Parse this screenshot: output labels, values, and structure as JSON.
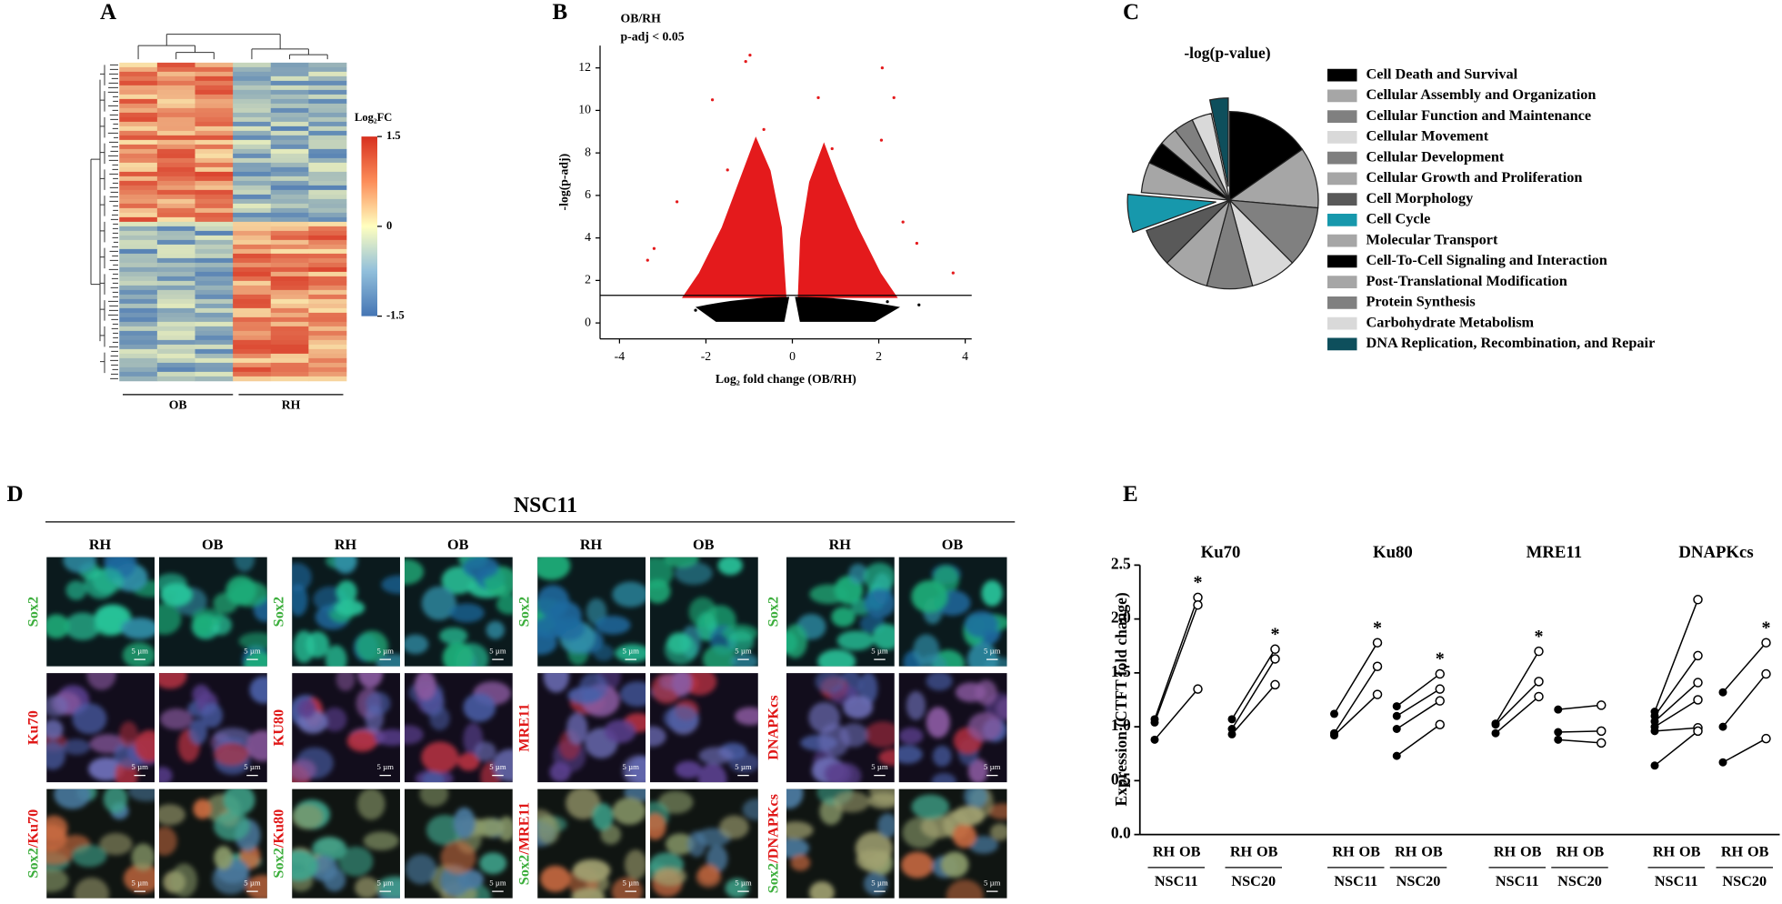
{
  "panel_labels": [
    "A",
    "B",
    "C",
    "D",
    "E"
  ],
  "chart_data": [
    {
      "type": "heatmap",
      "legend_title": "Log₂FC",
      "colorbar_lim": [
        -1.5,
        1.5
      ],
      "colorbar_ticks": [
        1.5,
        0,
        -1.5
      ],
      "groups": [
        "OB",
        "RH"
      ]
    },
    {
      "type": "scatter",
      "title": "OB/RH",
      "subtitle": "p-adj < 0.05",
      "x_label": "Log₂ fold change (OB/RH)",
      "y_label": "-log(p-adj)",
      "xlim": [
        -4.45,
        4.15
      ],
      "xticks": [
        -4,
        -2,
        0,
        2,
        4
      ],
      "ylim": [
        -0.75,
        13.05
      ],
      "yticks": [
        0,
        2,
        4,
        6,
        8,
        10,
        12
      ],
      "threshold": 1.3,
      "series": [
        {
          "color": "#e41a1c",
          "x": [
            -0.98,
            -1.08,
            2.08,
            -1.85,
            0.6,
            2.35,
            -0.66,
            -3.2,
            -3.35,
            3.72,
            2.88,
            2.56,
            2.06,
            0.92,
            -2.67,
            -1.5
          ],
          "values": [
            12.6,
            12.3,
            12.0,
            10.5,
            10.6,
            10.6,
            9.1,
            3.5,
            2.95,
            2.35,
            3.75,
            4.75,
            8.6,
            8.2,
            5.7,
            7.2
          ]
        },
        {
          "color": "#000000",
          "x": [
            -2.24,
            2.93,
            -1.77,
            2.2,
            -0.98
          ],
          "values": [
            0.6,
            0.85,
            0.85,
            1.0,
            0.75
          ]
        }
      ]
    },
    {
      "type": "pie",
      "title": "-log(p-value)",
      "categories": [
        "Cell Death and Survival",
        "Cellular Assembly and Organization",
        "Cellular Function and Maintenance",
        "Cellular Movement",
        "Cellular Development",
        "Cellular Growth and Proliferation",
        "Cell Morphology",
        "Cell Cycle",
        "Molecular Transport",
        "Cell-To-Cell Signaling and Interaction",
        "Post-Translational Modification",
        "Protein Synthesis",
        "Carbohydrate Metabolism",
        "DNA Replication, Recombination, and Repair"
      ],
      "values": [
        11,
        8,
        8,
        6,
        6,
        6,
        5,
        5,
        4,
        3,
        2.4,
        2.6,
        2.6,
        2.4
      ],
      "colors": [
        "#000000",
        "#a6a6a6",
        "#808080",
        "#d9d9d9",
        "#7f7f7f",
        "#a6a6a6",
        "#595959",
        "#1798ac",
        "#a6a6a6",
        "#000000",
        "#a6a6a6",
        "#808080",
        "#d9d9d9",
        "#0e4f5c"
      ],
      "exploded": [
        7,
        13
      ]
    },
    {
      "type": "line",
      "y_label": "Expression (CTFT fold change)",
      "ylim": [
        0,
        2.5
      ],
      "yticks": [
        {
          "value": 0,
          "label": "0.0"
        },
        0.5,
        {
          "value": 1,
          "label": "1.0"
        },
        1.5,
        {
          "value": 2,
          "label": "2.0"
        },
        2.5
      ],
      "conditions": [
        "RH",
        "OB"
      ],
      "groups": [
        {
          "name": "Ku70",
          "subgroups": [
            {
              "name": "NSC11",
              "rh": [
                1.07,
                1.04,
                0.88
              ],
              "ob": [
                2.2,
                2.13,
                1.35
              ],
              "significance": "*"
            },
            {
              "name": "NSC20",
              "rh": [
                1.07,
                0.98,
                0.93
              ],
              "ob": [
                1.72,
                1.63,
                1.39
              ],
              "significance": "*"
            }
          ]
        },
        {
          "name": "Ku80",
          "subgroups": [
            {
              "name": "NSC11",
              "rh": [
                1.12,
                0.94,
                0.92
              ],
              "ob": [
                1.78,
                1.56,
                1.3
              ],
              "significance": "*"
            },
            {
              "name": "NSC20",
              "rh": [
                1.19,
                1.1,
                0.98,
                0.73
              ],
              "ob": [
                1.49,
                1.35,
                1.24,
                1.02
              ],
              "significance": "*"
            }
          ]
        },
        {
          "name": "MRE11",
          "subgroups": [
            {
              "name": "NSC11",
              "rh": [
                1.03,
                1.02,
                0.94
              ],
              "ob": [
                1.7,
                1.42,
                1.28
              ],
              "significance": "*"
            },
            {
              "name": "NSC20",
              "rh": [
                1.16,
                0.95,
                0.88
              ],
              "ob": [
                1.2,
                0.96,
                0.85
              ]
            }
          ]
        },
        {
          "name": "DNAPKcs",
          "subgroups": [
            {
              "name": "NSC11",
              "rh": [
                1.14,
                1.1,
                1.05,
                1.0,
                0.96,
                0.64
              ],
              "ob": [
                2.18,
                1.66,
                1.41,
                1.25,
                0.99,
                0.96
              ]
            },
            {
              "name": "NSC20",
              "rh": [
                1.32,
                1.0,
                0.67
              ],
              "ob": [
                1.78,
                1.49,
                0.89
              ],
              "significance": "*"
            }
          ]
        }
      ]
    }
  ],
  "figure_d": {
    "title": "NSC11",
    "columns": [
      "RH",
      "OB"
    ],
    "counterstain": "Sox2",
    "separator": "/",
    "scale_bar": "5 µm",
    "markers": [
      {
        "row_label": "Ku70",
        "merge": "Ku70"
      },
      {
        "row_label": "KU80",
        "merge": "Ku80"
      },
      {
        "row_label": "MRE11",
        "merge": "MRE11"
      },
      {
        "row_label": "DNAPKcs",
        "merge": "DNAPKcs"
      }
    ]
  }
}
